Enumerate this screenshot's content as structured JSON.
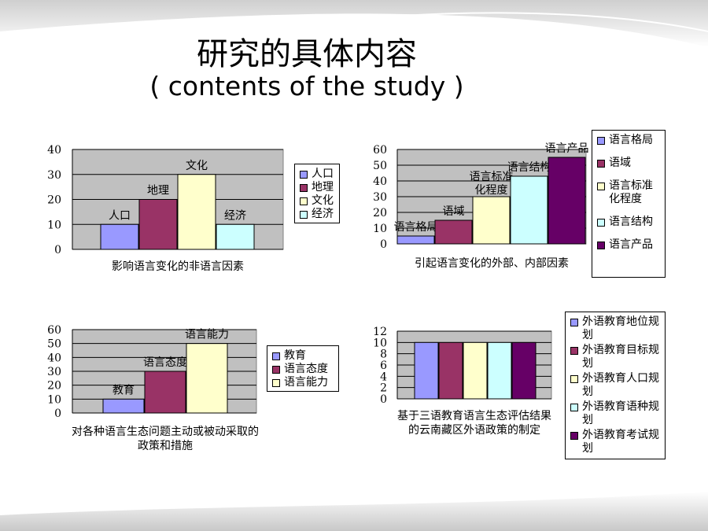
{
  "title": {
    "zh": "研究的具体内容",
    "en": "( contents of the study )"
  },
  "colors": {
    "lavender": "#9999ff",
    "plum": "#993366",
    "cream": "#ffffcc",
    "aqua": "#ccffff",
    "purple": "#660066",
    "plot_bg": "#c0c0c0"
  },
  "chart_data": [
    {
      "type": "bar",
      "categories": [
        "人口",
        "地理",
        "文化",
        "经济"
      ],
      "values": [
        10,
        20,
        30,
        10
      ],
      "data_labels": [
        "人口",
        "地理",
        "文化",
        "经济"
      ],
      "colors": [
        "#9999ff",
        "#993366",
        "#ffffcc",
        "#ccffff"
      ],
      "ylim": [
        0,
        40
      ],
      "yticks": [
        "0",
        "10",
        "20",
        "30",
        "40"
      ],
      "grid": true,
      "legend": [
        "人口",
        "地理",
        "文化",
        "经济"
      ],
      "legend_position": "right",
      "caption": "影响语言变化的非语言因素"
    },
    {
      "type": "bar",
      "categories": [
        "语言格局",
        "语域",
        "语言标准化程度",
        "语言结构",
        "语言产品"
      ],
      "values": [
        5,
        15,
        30,
        43,
        55
      ],
      "data_labels": [
        "语言格局",
        "语域",
        "语言标准化程度",
        "语言结构",
        "语言产品"
      ],
      "colors": [
        "#9999ff",
        "#993366",
        "#ffffcc",
        "#ccffff",
        "#660066"
      ],
      "ylim": [
        0,
        60
      ],
      "yticks": [
        "0",
        "10",
        "20",
        "30",
        "40",
        "50",
        "60"
      ],
      "grid": true,
      "legend": [
        "语言格局",
        "语域",
        "语言标准化程度",
        "语言结构",
        "语言产品"
      ],
      "legend_position": "right",
      "caption": "引起语言变化的外部、内部因素"
    },
    {
      "type": "bar",
      "categories": [
        "教育",
        "语言态度",
        "语言能力"
      ],
      "values": [
        10,
        30,
        50
      ],
      "data_labels": [
        "教育",
        "语言态度",
        "语言能力"
      ],
      "colors": [
        "#9999ff",
        "#993366",
        "#ffffcc"
      ],
      "ylim": [
        0,
        60
      ],
      "yticks": [
        "0",
        "10",
        "20",
        "30",
        "40",
        "50",
        "60"
      ],
      "grid": true,
      "legend": [
        "教育",
        "语言态度",
        "语言能力"
      ],
      "legend_position": "right",
      "caption": "对各种语言生态问题主动或被动采取的政策和措施"
    },
    {
      "type": "bar",
      "categories": [
        "外语教育地位规划",
        "外语教育目标规划",
        "外语教育人口规划",
        "外语教育语种规划",
        "外语教育考试规划"
      ],
      "values": [
        10,
        10,
        10,
        10,
        10
      ],
      "colors": [
        "#9999ff",
        "#993366",
        "#ffffcc",
        "#ccffff",
        "#660066"
      ],
      "ylim": [
        0,
        12
      ],
      "yticks": [
        "0",
        "2",
        "4",
        "6",
        "8",
        "10",
        "12"
      ],
      "grid": true,
      "legend": [
        "外语教育地位规划",
        "外语教育目标规划",
        "外语教育人口规划",
        "外语教育语种规划",
        "外语教育考试规划"
      ],
      "legend_position": "right",
      "caption": "基于三语教育语言生态评估结果的云南藏区外语政策的制定"
    }
  ]
}
